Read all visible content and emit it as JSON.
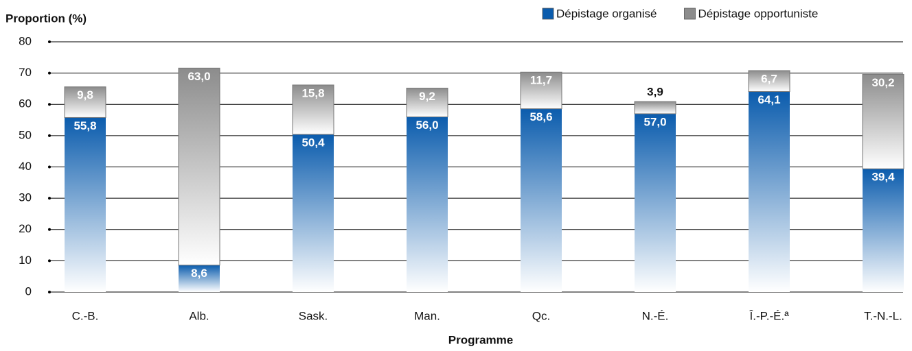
{
  "chart_data": {
    "type": "stacked-bar",
    "y_label": "Proportion (%)",
    "x_label": "Programme",
    "categories": [
      "C.-B.",
      "Alb.",
      "Sask.",
      "Man.",
      "Qc.",
      "N.-É.",
      "Î.-P.-É.ª",
      "T.-N.-L."
    ],
    "series": [
      {
        "name": "Dépistage organisé",
        "color": "#0b5cad",
        "values": [
          55.8,
          8.6,
          50.4,
          56.0,
          58.6,
          57.0,
          64.1,
          39.4
        ],
        "value_labels": [
          "55,8",
          "8,6",
          "50,4",
          "56,0",
          "58,6",
          "57,0",
          "64,1",
          "39,4"
        ]
      },
      {
        "name": "Dépistage opportuniste",
        "color": "#8c8c8c",
        "values": [
          9.8,
          63.0,
          15.8,
          9.2,
          11.7,
          3.9,
          6.7,
          30.2
        ],
        "value_labels": [
          "9,8",
          "63,0",
          "15,8",
          "9,2",
          "11,7",
          "3,9",
          "6,7",
          "30,2"
        ]
      }
    ],
    "ylim": [
      0,
      80
    ],
    "yticks": [
      0,
      10,
      20,
      30,
      40,
      50,
      60,
      70,
      80
    ],
    "grid": true,
    "legend": "top-right"
  }
}
